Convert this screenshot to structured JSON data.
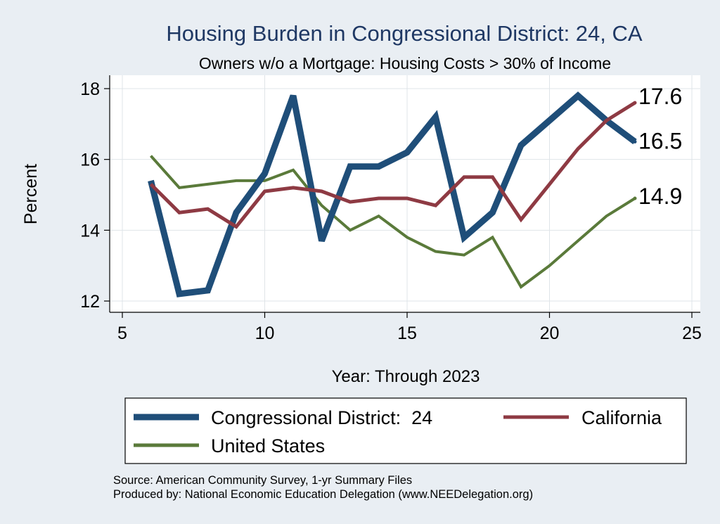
{
  "chart_data": {
    "type": "line",
    "title": "Housing Burden in Congressional District:  24, CA",
    "subtitle": "Owners w/o a Mortgage: Housing Costs > 30% of Income",
    "xlabel": "Year: Through 2023",
    "ylabel": "Percent",
    "xlim": [
      5,
      25
    ],
    "ylim": [
      12,
      18
    ],
    "x_ticks": [
      5,
      10,
      15,
      20,
      25
    ],
    "y_ticks": [
      12,
      14,
      16,
      18
    ],
    "grid": true,
    "legend_position": "bottom",
    "series": [
      {
        "name": "Congressional District:  24",
        "color": "#1f4e79",
        "x": [
          6,
          7,
          8,
          9,
          10,
          11,
          12,
          13,
          14,
          15,
          16,
          17,
          18,
          19,
          20,
          21,
          22,
          23
        ],
        "values": [
          15.4,
          12.2,
          12.3,
          14.5,
          15.6,
          17.8,
          13.7,
          15.8,
          15.8,
          16.2,
          17.2,
          13.8,
          14.5,
          16.4,
          17.1,
          17.8,
          17.1,
          16.5
        ],
        "end_label": "16.5"
      },
      {
        "name": "California",
        "color": "#8e3a43",
        "x": [
          6,
          7,
          8,
          9,
          10,
          11,
          12,
          13,
          14,
          15,
          16,
          17,
          18,
          19,
          20,
          21,
          22,
          23
        ],
        "values": [
          15.3,
          14.5,
          14.6,
          14.1,
          15.1,
          15.2,
          15.1,
          14.8,
          14.9,
          14.9,
          14.7,
          15.5,
          15.5,
          14.3,
          15.3,
          16.3,
          17.1,
          17.6
        ],
        "end_label": "17.6"
      },
      {
        "name": "United States",
        "color": "#5a7a3a",
        "x": [
          6,
          7,
          8,
          9,
          10,
          11,
          12,
          13,
          14,
          15,
          16,
          17,
          18,
          19,
          20,
          21,
          22,
          23
        ],
        "values": [
          16.1,
          15.2,
          15.3,
          15.4,
          15.4,
          15.7,
          14.7,
          14.0,
          14.4,
          13.8,
          13.4,
          13.3,
          13.8,
          12.4,
          13.0,
          13.7,
          14.4,
          14.9
        ],
        "end_label": "14.9"
      }
    ]
  },
  "legend": {
    "items": [
      "Congressional District:  24",
      "California",
      "United States"
    ]
  },
  "footer": {
    "source": "Source: American Community Survey, 1-yr Summary Files",
    "produced_by": "Produced by: National Economic Education Delegation (www.NEEDelegation.org)"
  }
}
